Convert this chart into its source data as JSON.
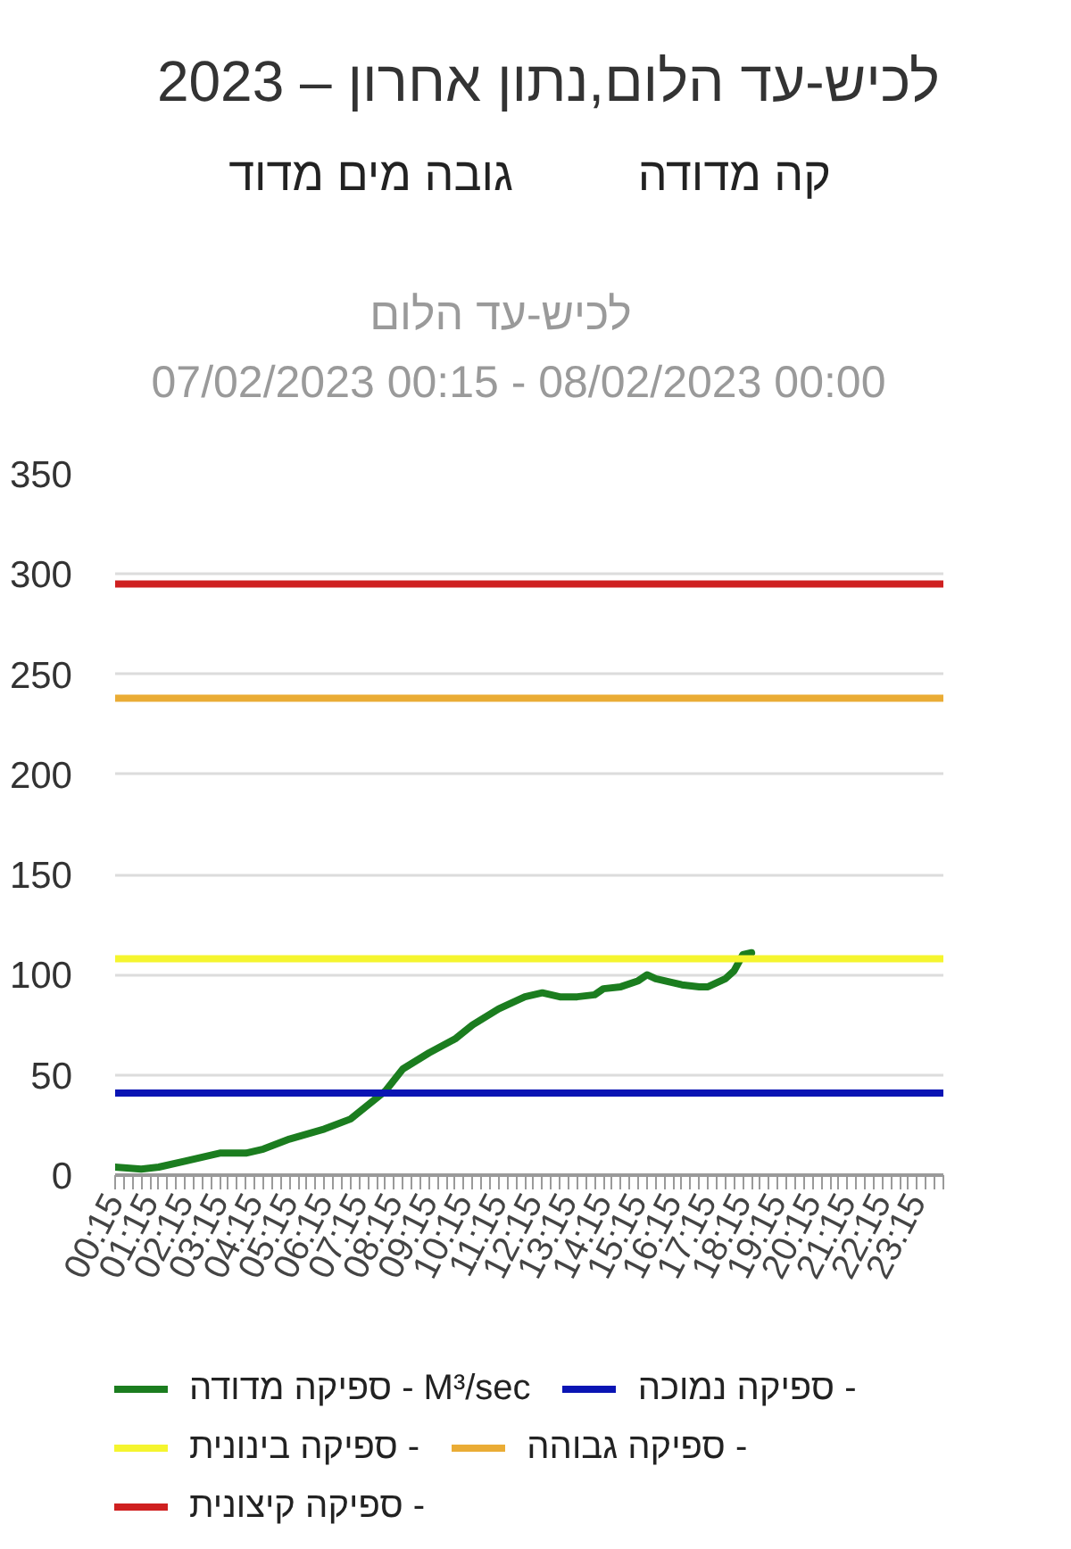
{
  "chart_data": {
    "type": "line",
    "title": "לכיש-עד הלום",
    "subtitle": "07/02/2023 00:15 - 08/02/2023 00:00",
    "annotations": [
      "לכיש-עד הלום,נתון אחרון – 2023",
      "קה מדודה",
      "גובה מים מדוד"
    ],
    "xlim": [
      0.25,
      24
    ],
    "xticks": [
      {
        "value": 0.25,
        "label": "00:15"
      },
      {
        "value": 0.5,
        "label": null
      },
      {
        "value": 0.75,
        "label": null
      },
      {
        "value": 1,
        "label": null
      },
      {
        "value": 1.25,
        "label": "01:15"
      },
      {
        "value": 1.5,
        "label": null
      },
      {
        "value": 1.75,
        "label": null
      },
      {
        "value": 2,
        "label": null
      },
      {
        "value": 2.25,
        "label": "02:15"
      },
      {
        "value": 2.5,
        "label": null
      },
      {
        "value": 2.75,
        "label": null
      },
      {
        "value": 3,
        "label": null
      },
      {
        "value": 3.25,
        "label": "03:15"
      },
      {
        "value": 3.5,
        "label": null
      },
      {
        "value": 3.75,
        "label": null
      },
      {
        "value": 4,
        "label": null
      },
      {
        "value": 4.25,
        "label": "04:15"
      },
      {
        "value": 4.5,
        "label": null
      },
      {
        "value": 4.75,
        "label": null
      },
      {
        "value": 5,
        "label": null
      },
      {
        "value": 5.25,
        "label": "05:15"
      },
      {
        "value": 5.5,
        "label": null
      },
      {
        "value": 5.75,
        "label": null
      },
      {
        "value": 6,
        "label": null
      },
      {
        "value": 6.25,
        "label": "06:15"
      },
      {
        "value": 6.5,
        "label": null
      },
      {
        "value": 6.75,
        "label": null
      },
      {
        "value": 7,
        "label": null
      },
      {
        "value": 7.25,
        "label": "07:15"
      },
      {
        "value": 7.5,
        "label": null
      },
      {
        "value": 7.75,
        "label": null
      },
      {
        "value": 8,
        "label": null
      },
      {
        "value": 8.25,
        "label": "08:15"
      },
      {
        "value": 8.5,
        "label": null
      },
      {
        "value": 8.75,
        "label": null
      },
      {
        "value": 9,
        "label": null
      },
      {
        "value": 9.25,
        "label": "09:15"
      },
      {
        "value": 9.5,
        "label": null
      },
      {
        "value": 9.75,
        "label": null
      },
      {
        "value": 10,
        "label": null
      },
      {
        "value": 10.25,
        "label": "10:15"
      },
      {
        "value": 10.5,
        "label": null
      },
      {
        "value": 10.75,
        "label": null
      },
      {
        "value": 11,
        "label": null
      },
      {
        "value": 11.25,
        "label": "11:15"
      },
      {
        "value": 11.5,
        "label": null
      },
      {
        "value": 11.75,
        "label": null
      },
      {
        "value": 12,
        "label": null
      },
      {
        "value": 12.25,
        "label": "12:15"
      },
      {
        "value": 12.5,
        "label": null
      },
      {
        "value": 12.75,
        "label": null
      },
      {
        "value": 13,
        "label": null
      },
      {
        "value": 13.25,
        "label": "13:15"
      },
      {
        "value": 13.5,
        "label": null
      },
      {
        "value": 13.75,
        "label": null
      },
      {
        "value": 14,
        "label": null
      },
      {
        "value": 14.25,
        "label": "14:15"
      },
      {
        "value": 14.5,
        "label": null
      },
      {
        "value": 14.75,
        "label": null
      },
      {
        "value": 15,
        "label": null
      },
      {
        "value": 15.25,
        "label": "15:15"
      },
      {
        "value": 15.5,
        "label": null
      },
      {
        "value": 15.75,
        "label": null
      },
      {
        "value": 16,
        "label": null
      },
      {
        "value": 16.25,
        "label": "16:15"
      },
      {
        "value": 16.5,
        "label": null
      },
      {
        "value": 16.75,
        "label": null
      },
      {
        "value": 17,
        "label": null
      },
      {
        "value": 17.25,
        "label": "17:15"
      },
      {
        "value": 17.5,
        "label": null
      },
      {
        "value": 17.75,
        "label": null
      },
      {
        "value": 18,
        "label": null
      },
      {
        "value": 18.25,
        "label": "18:15"
      },
      {
        "value": 18.5,
        "label": null
      },
      {
        "value": 18.75,
        "label": null
      },
      {
        "value": 19,
        "label": null
      },
      {
        "value": 19.25,
        "label": "19:15"
      },
      {
        "value": 19.5,
        "label": null
      },
      {
        "value": 19.75,
        "label": null
      },
      {
        "value": 20,
        "label": null
      },
      {
        "value": 20.25,
        "label": "20:15"
      },
      {
        "value": 20.5,
        "label": null
      },
      {
        "value": 20.75,
        "label": null
      },
      {
        "value": 21,
        "label": null
      },
      {
        "value": 21.25,
        "label": "21:15"
      },
      {
        "value": 21.5,
        "label": null
      },
      {
        "value": 21.75,
        "label": null
      },
      {
        "value": 22,
        "label": null
      },
      {
        "value": 22.25,
        "label": "22:15"
      },
      {
        "value": 22.5,
        "label": null
      },
      {
        "value": 22.75,
        "label": null
      },
      {
        "value": 23,
        "label": null
      },
      {
        "value": 23.25,
        "label": "23:15"
      },
      {
        "value": 23.5,
        "label": null
      },
      {
        "value": 23.75,
        "label": null
      },
      {
        "value": 24,
        "label": null
      }
    ],
    "ylim": [
      0,
      350
    ],
    "yticks": [
      0,
      50,
      100,
      150,
      200,
      250,
      300,
      350
    ],
    "grid": "y",
    "legend": "bottom",
    "line_style": "solid",
    "series": [
      {
        "name": "ספיקה מדודה - M³/sec",
        "color": "#1b7d1f",
        "x": [
          0.25,
          1,
          1.5,
          2.25,
          3,
          3.25,
          4,
          4.5,
          5.25,
          6.25,
          7,
          7.5,
          8,
          8.5,
          9.25,
          10,
          10.5,
          11.25,
          12,
          12.5,
          13,
          13.5,
          14,
          14.25,
          14.75,
          15.25,
          15.5,
          15.75,
          16.25,
          16.5,
          17,
          17.25,
          17.5,
          17.75,
          18,
          18.25,
          18.5
        ],
        "values": [
          4,
          3,
          4,
          7,
          10,
          11,
          11,
          13,
          18,
          23,
          28,
          35,
          42,
          53,
          61,
          68,
          75,
          83,
          89,
          91,
          89,
          89,
          90,
          93,
          94,
          97,
          100,
          98,
          96,
          95,
          94,
          94,
          96,
          98,
          102,
          110,
          111
        ]
      },
      {
        "name": "ספיקה נמוכה -",
        "color": "#0a14b4",
        "x": [
          0.25,
          24
        ],
        "values": [
          41,
          41
        ]
      },
      {
        "name": "ספיקה בינונית -",
        "color": "#f5f52e",
        "x": [
          0.25,
          24
        ],
        "values": [
          108,
          108
        ]
      },
      {
        "name": "ספיקה גבוהה -",
        "color": "#eaac35",
        "x": [
          0.25,
          24
        ],
        "values": [
          238,
          238
        ]
      },
      {
        "name": "ספיקה קיצונית -",
        "color": "#cf2020",
        "x": [
          0.25,
          24
        ],
        "values": [
          295,
          295
        ]
      }
    ]
  }
}
